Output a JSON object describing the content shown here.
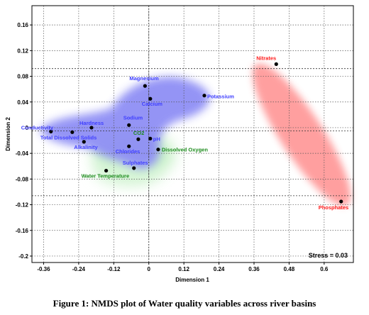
{
  "chart_data": {
    "type": "scatter",
    "title": "",
    "xlabel": "Dimension 1",
    "ylabel": "Dimension 2",
    "xlim": [
      -0.4,
      0.7
    ],
    "ylim": [
      -0.21,
      0.19
    ],
    "x_ticks": [
      -0.36,
      -0.24,
      -0.12,
      0,
      0.12,
      0.24,
      0.36,
      0.48,
      0.6
    ],
    "x_tick_labels": [
      "-0.36",
      "-0.24",
      "-0.12",
      "0",
      "0.12",
      "0.24",
      "0.36",
      "0.48",
      "0.6"
    ],
    "y_ticks": [
      0.16,
      0.12,
      0.08,
      0.04,
      0,
      -0.04,
      -0.08,
      -0.12,
      -0.16,
      -0.2
    ],
    "y_tick_labels": [
      "0.16",
      "0.12",
      "0.08",
      "0.04",
      "0",
      "-0.04",
      "-0.08",
      "-0.12",
      "-0.16",
      "-0.2"
    ],
    "grid": true,
    "reference_lines": {
      "x": [
        0
      ],
      "y": [
        0.092,
        -0.005,
        -0.106
      ]
    },
    "groups": [
      {
        "color": "#4040ff",
        "shade": "#9b9bf7"
      },
      {
        "color": "#1b8a1b",
        "shade": "#bfeebf"
      },
      {
        "color": "#ff1a1a",
        "shade": "#ff9c9c"
      }
    ],
    "points": [
      {
        "label": "Magnesium",
        "x": -0.013,
        "y": 0.065,
        "group": 0
      },
      {
        "label": "Calcium",
        "x": 0.005,
        "y": 0.045,
        "group": 0
      },
      {
        "label": "Potassium",
        "x": 0.19,
        "y": 0.05,
        "group": 0
      },
      {
        "label": "Sodium",
        "x": -0.068,
        "y": 0.004,
        "group": 0
      },
      {
        "label": "Hardness",
        "x": -0.196,
        "y": 0.0,
        "group": 0
      },
      {
        "label": "Conductivity",
        "x": -0.335,
        "y": -0.006,
        "group": 0
      },
      {
        "label": "Total Dissolved Solids",
        "x": -0.262,
        "y": -0.007,
        "group": 0
      },
      {
        "label": "Alkalinity",
        "x": -0.222,
        "y": -0.022,
        "group": 0
      },
      {
        "label": "Chlorides",
        "x": -0.068,
        "y": -0.029,
        "group": 0
      },
      {
        "label": "pH",
        "x": 0.005,
        "y": -0.017,
        "group": 0
      },
      {
        "label": "Sulphates",
        "x": -0.051,
        "y": -0.063,
        "group": 0
      },
      {
        "label": "CO2",
        "x": -0.036,
        "y": -0.018,
        "group": 1
      },
      {
        "label": "Dissolved Oxygen",
        "x": 0.032,
        "y": -0.034,
        "group": 1
      },
      {
        "label": "Water Temperature",
        "x": -0.146,
        "y": -0.067,
        "group": 1
      },
      {
        "label": "Nitrates",
        "x": 0.436,
        "y": 0.099,
        "group": 2
      },
      {
        "label": "Phosphates",
        "x": 0.658,
        "y": -0.115,
        "group": 2
      }
    ],
    "stress_label": "Stress = 0.03"
  },
  "figure": {
    "caption": "Figure  1: NMDS plot of Water quality  variables  across river  basins"
  }
}
